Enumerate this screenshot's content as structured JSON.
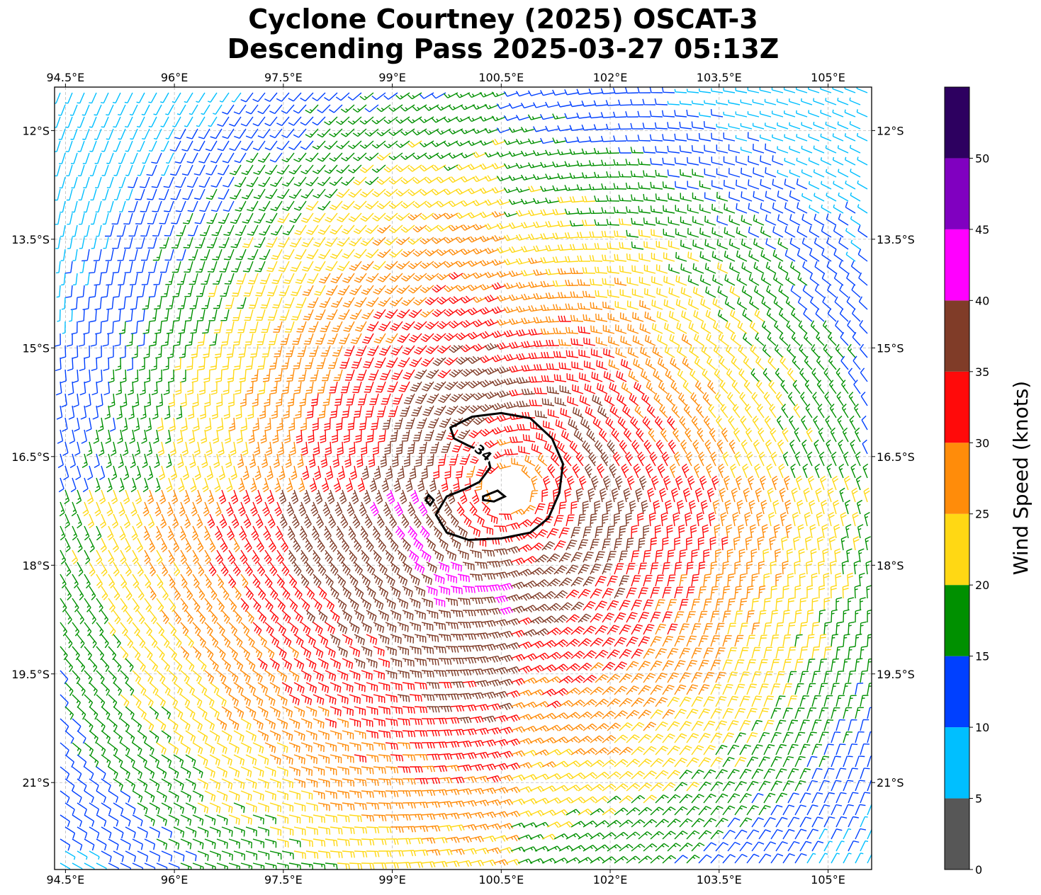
{
  "title": {
    "line1": "Cyclone Courtney (2025) OSCAT-3",
    "line2": "Descending Pass 2025-03-27 05:13Z"
  },
  "map": {
    "lon_range": [
      94.35,
      105.6
    ],
    "lat_range": [
      -22.2,
      -11.4
    ],
    "lon_ticks": [
      94.5,
      96,
      97.5,
      99,
      100.5,
      102,
      103.5,
      105
    ],
    "lon_labels": [
      "94.5°E",
      "96°E",
      "97.5°E",
      "99°E",
      "100.5°E",
      "102°E",
      "103.5°E",
      "105°E"
    ],
    "lat_ticks": [
      -12,
      -13.5,
      -15,
      -16.5,
      -18,
      -19.5,
      -21
    ],
    "lat_labels": [
      "12°S",
      "13.5°S",
      "15°S",
      "16.5°S",
      "18°S",
      "19.5°S",
      "21°S"
    ],
    "gridlines": true,
    "cyclone_center": {
      "lon": 100.6,
      "lat": -16.95
    },
    "contour_34kt": {
      "label": "34",
      "points": [
        [
          99.8,
          -16.1
        ],
        [
          100.1,
          -15.95
        ],
        [
          100.5,
          -15.9
        ],
        [
          100.9,
          -15.97
        ],
        [
          101.2,
          -16.25
        ],
        [
          101.35,
          -16.6
        ],
        [
          101.3,
          -17.0
        ],
        [
          101.15,
          -17.35
        ],
        [
          100.9,
          -17.55
        ],
        [
          100.5,
          -17.63
        ],
        [
          100.05,
          -17.65
        ],
        [
          99.75,
          -17.55
        ],
        [
          99.6,
          -17.3
        ],
        [
          99.75,
          -17.05
        ],
        [
          100.0,
          -16.95
        ],
        [
          100.2,
          -16.85
        ],
        [
          100.35,
          -16.65
        ],
        [
          100.3,
          -16.45
        ],
        [
          100.05,
          -16.35
        ],
        [
          99.85,
          -16.25
        ]
      ],
      "inner_points": [
        [
          100.25,
          -17.05
        ],
        [
          100.45,
          -16.97
        ],
        [
          100.55,
          -17.05
        ],
        [
          100.4,
          -17.12
        ],
        [
          100.25,
          -17.1
        ]
      ],
      "islet_points": [
        [
          99.5,
          -17.03
        ],
        [
          99.57,
          -17.1
        ],
        [
          99.52,
          -17.17
        ],
        [
          99.46,
          -17.1
        ]
      ]
    }
  },
  "colorbar": {
    "label": "Wind Speed (knots)",
    "ticks": [
      0,
      5,
      10,
      15,
      20,
      25,
      30,
      35,
      40,
      45,
      50
    ],
    "bins": [
      {
        "from": 0,
        "to": 5,
        "color": "#575757"
      },
      {
        "from": 5,
        "to": 10,
        "color": "#00bfff"
      },
      {
        "from": 10,
        "to": 15,
        "color": "#0040ff"
      },
      {
        "from": 15,
        "to": 20,
        "color": "#009000"
      },
      {
        "from": 20,
        "to": 25,
        "color": "#ffd814"
      },
      {
        "from": 25,
        "to": 30,
        "color": "#ff8c0a"
      },
      {
        "from": 30,
        "to": 35,
        "color": "#ff0a0a"
      },
      {
        "from": 35,
        "to": 40,
        "color": "#803c28"
      },
      {
        "from": 40,
        "to": 45,
        "color": "#ff00ff"
      },
      {
        "from": 45,
        "to": 50,
        "color": "#8000c0"
      },
      {
        "from": 50,
        "to": 55,
        "color": "#2d0060"
      }
    ]
  }
}
